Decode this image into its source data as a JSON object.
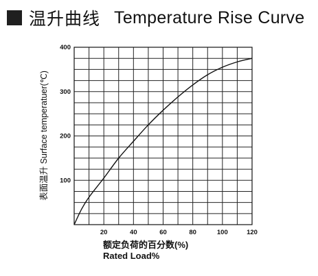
{
  "header": {
    "icon": "filled-square-icon",
    "title_cn": "温升曲线",
    "title_en": "Temperature Rise Curve"
  },
  "chart_data": {
    "type": "line",
    "title": "温升曲线 Temperature Rise Curve",
    "xlabel_cn": "额定负荷的百分数(%)",
    "xlabel_en": "Rated Load%",
    "ylabel": "表面温升 Surface temperatuer(℃)",
    "xlim": [
      0,
      120
    ],
    "ylim": [
      0,
      400
    ],
    "x_ticks": [
      20,
      40,
      60,
      80,
      100,
      120
    ],
    "y_ticks": [
      100,
      200,
      300,
      400
    ],
    "grid": true,
    "series": [
      {
        "x": [
          0,
          5,
          10,
          20,
          30,
          40,
          50,
          60,
          70,
          80,
          90,
          100,
          110,
          120
        ],
        "values": [
          0,
          35,
          62,
          105,
          150,
          188,
          225,
          258,
          288,
          315,
          338,
          355,
          367,
          375
        ]
      }
    ]
  }
}
